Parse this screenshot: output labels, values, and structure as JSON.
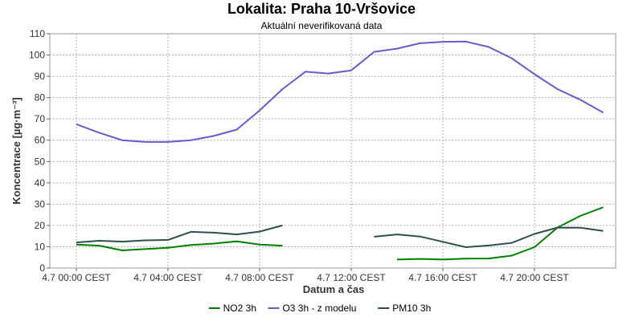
{
  "chart_data": {
    "type": "line",
    "title": "Lokalita: Praha 10-Vršovice",
    "subtitle": "Aktuální neverifikovaná data",
    "xlabel": "Datum a čas",
    "ylabel": "Koncentrace [µg·m⁻³]",
    "ylim": [
      0,
      110
    ],
    "yticks": [
      0,
      10,
      20,
      30,
      40,
      50,
      60,
      70,
      80,
      90,
      100,
      110
    ],
    "xlim": [
      0,
      23.5
    ],
    "xticks": [
      {
        "x": 0,
        "label": "4.7 00:00 CEST"
      },
      {
        "x": 4,
        "label": "4.7 04:00 CEST"
      },
      {
        "x": 8,
        "label": "4.7 08:00 CEST"
      },
      {
        "x": 12,
        "label": "4.7 12:00 CEST"
      },
      {
        "x": 16,
        "label": "4.7 16:00 CEST"
      },
      {
        "x": 20,
        "label": "4.7 20:00 CEST"
      }
    ],
    "grid": true,
    "legend_position": "bottom",
    "series": [
      {
        "name": "NO2 3h",
        "color": "#008000",
        "x": [
          0,
          1,
          2,
          3,
          4,
          5,
          6,
          7,
          8,
          9,
          10,
          11,
          12,
          13,
          14,
          15,
          16,
          17,
          18,
          19,
          20,
          21,
          22,
          23
        ],
        "y": [
          11,
          10.5,
          8.3,
          8.9,
          9.5,
          10.8,
          11.5,
          12.5,
          11,
          10.5,
          null,
          null,
          null,
          null,
          4,
          4.3,
          4,
          4.4,
          4.5,
          5.8,
          9.8,
          19,
          24.5,
          28.5
        ]
      },
      {
        "name": "O3 3h - z modelu",
        "color": "#6a5acd",
        "x": [
          0,
          1,
          2,
          3,
          4,
          5,
          6,
          7,
          8,
          9,
          10,
          11,
          12,
          13,
          14,
          15,
          16,
          17,
          18,
          19,
          20,
          21,
          22,
          23
        ],
        "y": [
          67.5,
          63.5,
          60,
          59.2,
          59.2,
          60,
          62,
          65,
          74,
          84,
          92.2,
          91.3,
          92.8,
          101.5,
          103,
          105.5,
          106.2,
          106.3,
          103.8,
          98.5,
          91,
          84,
          79,
          73
        ]
      },
      {
        "name": "PM10 3h",
        "color": "#2f4f4f",
        "x": [
          0,
          1,
          2,
          3,
          4,
          5,
          6,
          7,
          8,
          9,
          10,
          11,
          12,
          13,
          14,
          15,
          16,
          17,
          18,
          19,
          20,
          21,
          22,
          23
        ],
        "y": [
          12,
          12.8,
          12.4,
          13,
          13.2,
          17,
          16.6,
          15.8,
          17.1,
          20,
          null,
          null,
          null,
          14.7,
          15.8,
          14.8,
          12.3,
          9.8,
          10.6,
          11.8,
          16,
          19,
          18.9,
          17.4
        ]
      }
    ]
  }
}
